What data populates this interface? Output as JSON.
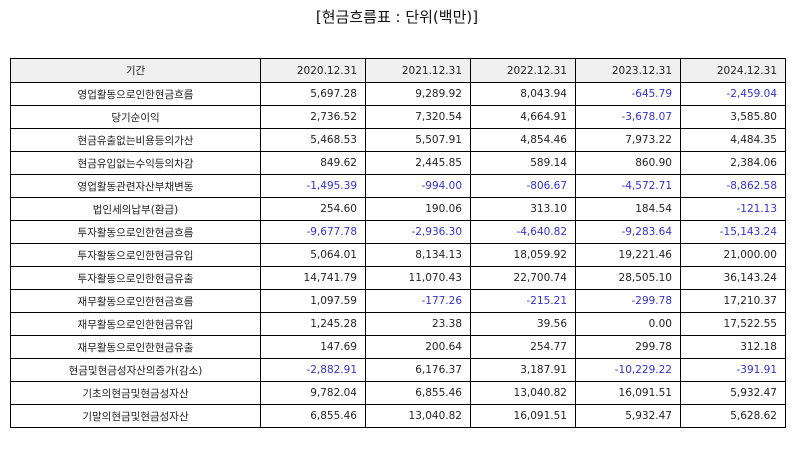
{
  "title": "[현금흐름표 : 단위(백만)]",
  "colors": {
    "negative": "#3333cc",
    "header_bg": "#f0f0f0"
  },
  "table": {
    "columns": [
      "기간",
      "2020.12.31",
      "2021.12.31",
      "2022.12.31",
      "2023.12.31",
      "2024.12.31"
    ],
    "rows": [
      {
        "label": "영업활동으로인한현금흐름",
        "values": [
          "5,697.28",
          "9,289.92",
          "8,043.94",
          "-645.79",
          "-2,459.04"
        ]
      },
      {
        "label": "당기순이익",
        "values": [
          "2,736.52",
          "7,320.54",
          "4,664.91",
          "-3,678.07",
          "3,585.80"
        ]
      },
      {
        "label": "현금유출없는비용등의가산",
        "values": [
          "5,468.53",
          "5,507.91",
          "4,854.46",
          "7,973.22",
          "4,484.35"
        ]
      },
      {
        "label": "현금유입없는수익등의차감",
        "values": [
          "849.62",
          "2,445.85",
          "589.14",
          "860.90",
          "2,384.06"
        ]
      },
      {
        "label": "영업활동관련자산부채변동",
        "values": [
          "-1,495.39",
          "-994.00",
          "-806.67",
          "-4,572.71",
          "-8,862.58"
        ]
      },
      {
        "label": "법인세의납부(환급)",
        "values": [
          "254.60",
          "190.06",
          "313.10",
          "184.54",
          "-121.13"
        ]
      },
      {
        "label": "투자활동으로인한현금흐름",
        "values": [
          "-9,677.78",
          "-2,936.30",
          "-4,640.82",
          "-9,283.64",
          "-15,143.24"
        ]
      },
      {
        "label": "투자활동으로인한현금유입",
        "values": [
          "5,064.01",
          "8,134.13",
          "18,059.92",
          "19,221.46",
          "21,000.00"
        ]
      },
      {
        "label": "투자활동으로인한현금유출",
        "values": [
          "14,741.79",
          "11,070.43",
          "22,700.74",
          "28,505.10",
          "36,143.24"
        ]
      },
      {
        "label": "재무활동으로인한현금흐름",
        "values": [
          "1,097.59",
          "-177.26",
          "-215.21",
          "-299.78",
          "17,210.37"
        ]
      },
      {
        "label": "재무활동으로인한현금유입",
        "values": [
          "1,245.28",
          "23.38",
          "39.56",
          "0.00",
          "17,522.55"
        ]
      },
      {
        "label": "재무활동으로인한현금유출",
        "values": [
          "147.69",
          "200.64",
          "254.77",
          "299.78",
          "312.18"
        ]
      },
      {
        "label": "현금및현금성자산의증가(감소)",
        "values": [
          "-2,882.91",
          "6,176.37",
          "3,187.91",
          "-10,229.22",
          "-391.91"
        ]
      },
      {
        "label": "기초의현금및현금성자산",
        "values": [
          "9,782.04",
          "6,855.46",
          "13,040.82",
          "16,091.51",
          "5,932.47"
        ]
      },
      {
        "label": "기말의현금및현금성자산",
        "values": [
          "6,855.46",
          "13,040.82",
          "16,091.51",
          "5,932.47",
          "5,628.62"
        ]
      }
    ]
  }
}
